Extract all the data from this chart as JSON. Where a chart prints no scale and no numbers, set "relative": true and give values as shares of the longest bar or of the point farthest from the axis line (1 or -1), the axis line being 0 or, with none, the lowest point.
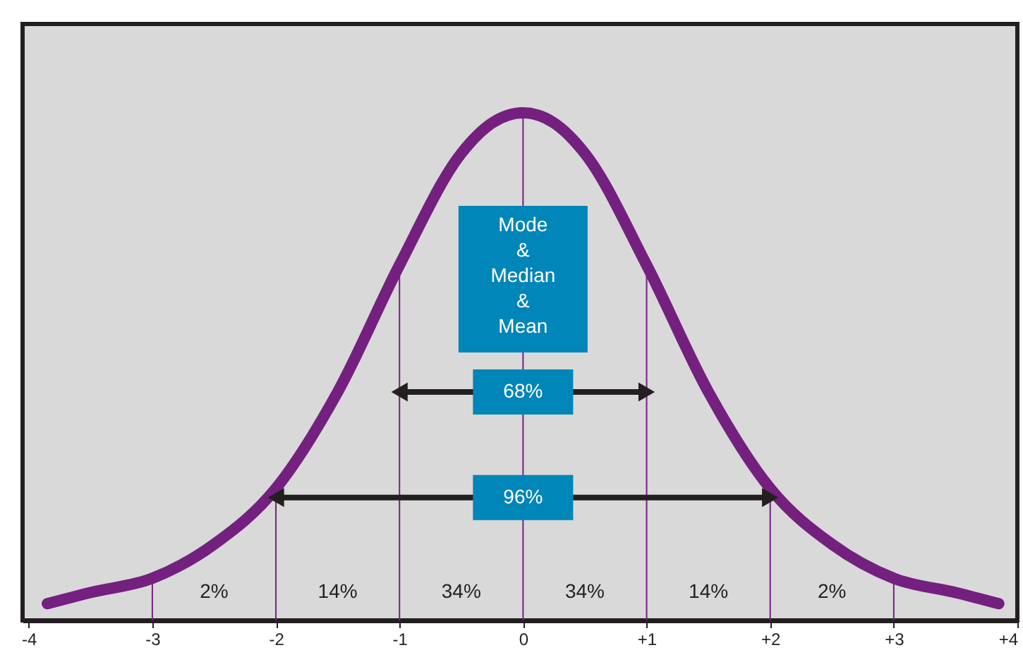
{
  "chart_data": {
    "type": "line",
    "relative": true,
    "x": [
      -3.85,
      -3.5,
      -3,
      -2.5,
      -2,
      -1.5,
      -1,
      -0.5,
      -0.25,
      0,
      0.25,
      0.5,
      1,
      1.5,
      2,
      2.5,
      3,
      3.5,
      3.85
    ],
    "series": [
      {
        "color": "#74207f",
        "values": [
          0.033,
          0.055,
          0.083,
          0.15,
          0.26,
          0.45,
          0.7,
          0.92,
          0.98,
          1,
          0.98,
          0.92,
          0.7,
          0.45,
          0.26,
          0.15,
          0.083,
          0.055,
          0.033
        ]
      }
    ],
    "xlim": [
      -4.05,
      4
    ],
    "xticks": [
      -4,
      -3,
      -2,
      -1,
      0,
      {
        "value": 1,
        "label": "+1"
      },
      {
        "value": 2,
        "label": "+2"
      },
      {
        "value": 3,
        "label": "+3"
      },
      {
        "value": 4,
        "label": "+4"
      }
    ],
    "grid": false,
    "ref_lines": [
      {
        "axis": "x",
        "value": -3,
        "color": "#74207f"
      },
      {
        "axis": "x",
        "value": -2,
        "color": "#74207f"
      },
      {
        "axis": "x",
        "value": -1,
        "color": "#74207f"
      },
      {
        "axis": "x",
        "value": 0,
        "color": "#74207f"
      },
      {
        "axis": "x",
        "value": 1,
        "color": "#74207f"
      },
      {
        "axis": "x",
        "value": 2,
        "color": "#74207f"
      },
      {
        "axis": "x",
        "value": 3,
        "color": "#74207f"
      }
    ],
    "annotations": [
      "Mode\n&\nMedian\n&\nMean",
      "68%",
      "96%",
      "2%",
      "14%",
      "34%",
      "34%",
      "14%",
      "2%"
    ]
  }
}
